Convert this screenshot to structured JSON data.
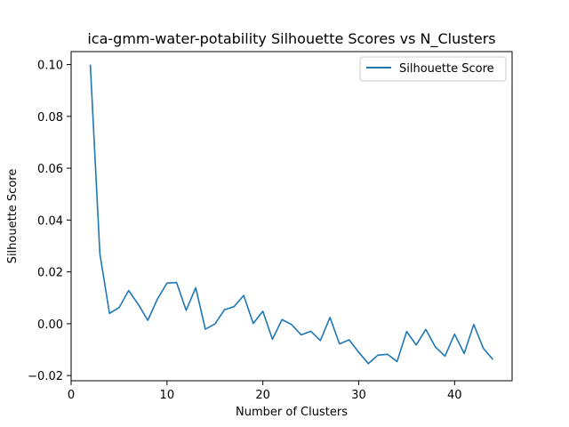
{
  "chart_data": {
    "type": "line",
    "title": "ica-gmm-water-potability Silhouette Scores vs N_Clusters",
    "xlabel": "Number of Clusters",
    "ylabel": "Silhouette Score",
    "xlim": [
      0,
      46
    ],
    "ylim": [
      -0.022,
      0.105
    ],
    "x_ticks": [
      0,
      10,
      20,
      30,
      40
    ],
    "x_tick_labels": [
      "0",
      "10",
      "20",
      "30",
      "40"
    ],
    "y_ticks": [
      -0.02,
      0.0,
      0.02,
      0.04,
      0.06,
      0.08,
      0.1
    ],
    "y_tick_labels": [
      "−0.02",
      "0.00",
      "0.02",
      "0.04",
      "0.06",
      "0.08",
      "0.10"
    ],
    "grid": false,
    "legend_position": "top-right",
    "series": [
      {
        "name": "Silhouette Score",
        "color": "#1f77b4",
        "x": [
          2,
          3,
          4,
          5,
          6,
          7,
          8,
          9,
          10,
          11,
          12,
          13,
          14,
          15,
          16,
          17,
          18,
          19,
          20,
          21,
          22,
          23,
          24,
          25,
          26,
          27,
          28,
          29,
          30,
          31,
          32,
          33,
          34,
          35,
          36,
          37,
          38,
          39,
          40,
          41,
          42,
          43,
          44
        ],
        "values": [
          0.1,
          0.027,
          0.004,
          0.0062,
          0.0128,
          0.0075,
          0.0013,
          0.0095,
          0.0157,
          0.0159,
          0.0052,
          0.0139,
          -0.0021,
          -0.0001,
          0.0054,
          0.0066,
          0.0109,
          0.0001,
          0.0048,
          -0.006,
          0.0016,
          -0.0003,
          -0.0043,
          -0.0029,
          -0.0065,
          0.0024,
          -0.0078,
          -0.0062,
          -0.011,
          -0.0154,
          -0.0121,
          -0.0118,
          -0.0146,
          -0.003,
          -0.0082,
          -0.0022,
          -0.009,
          -0.0125,
          -0.004,
          -0.0115,
          -0.0003,
          -0.0095,
          -0.0138
        ]
      }
    ]
  }
}
